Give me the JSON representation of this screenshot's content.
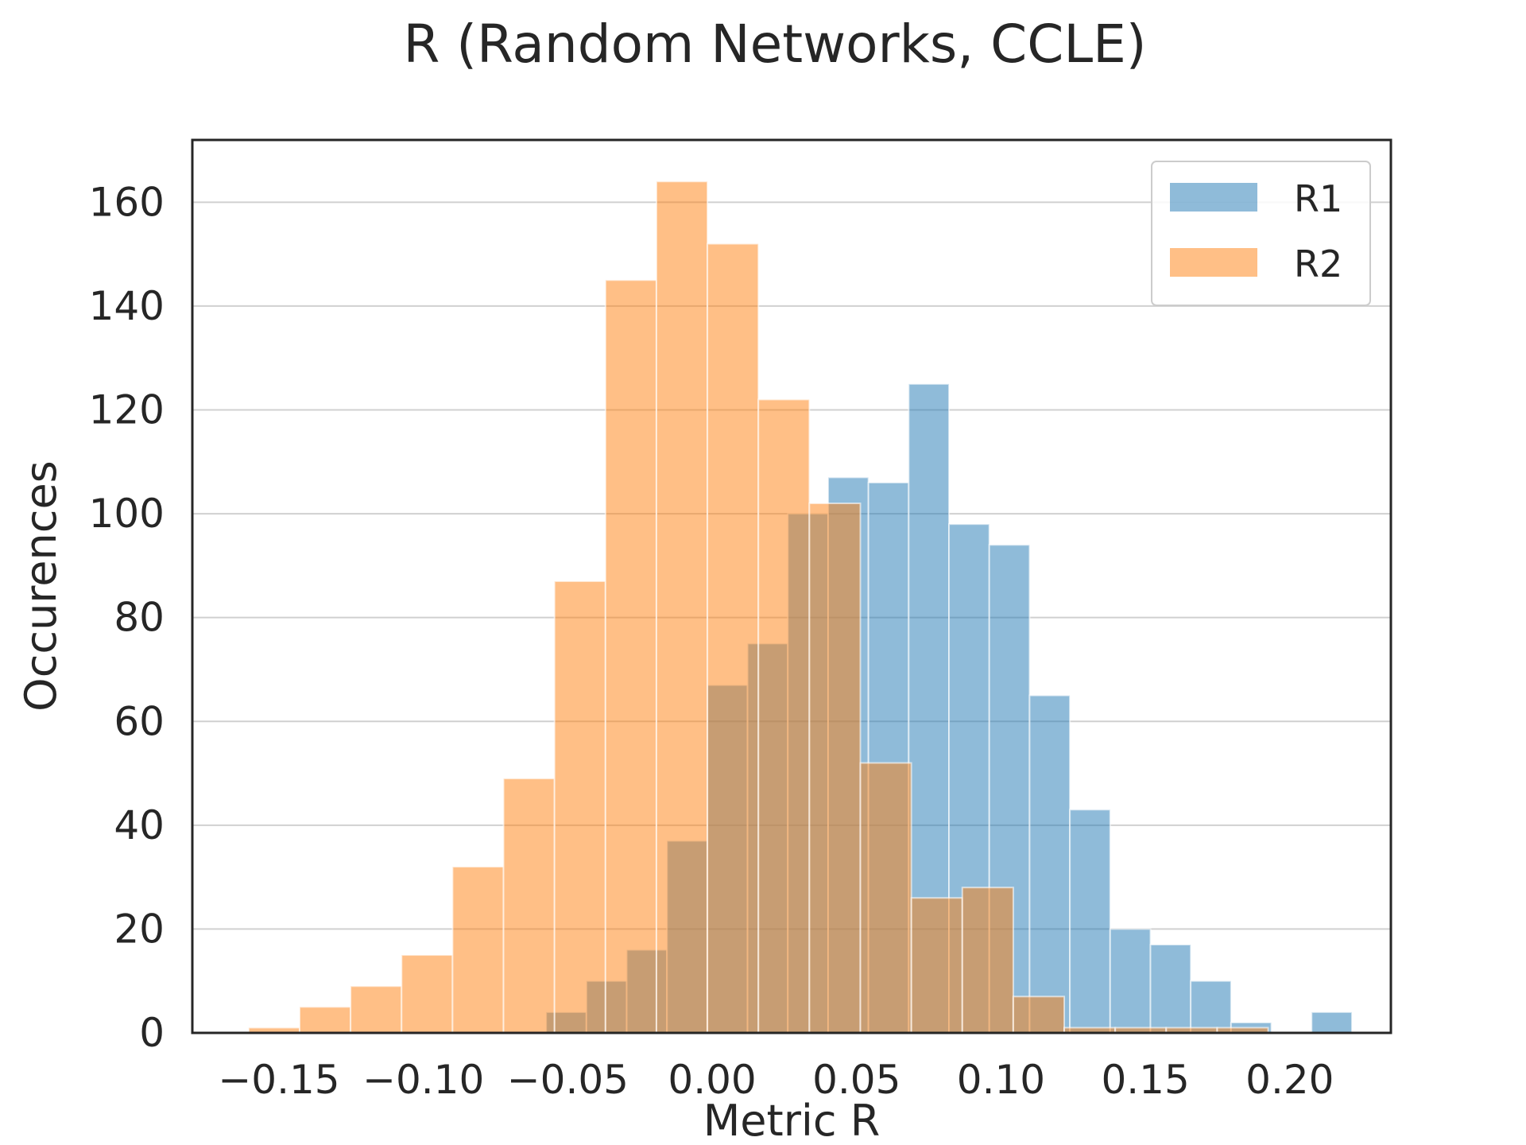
{
  "chart_data": {
    "type": "bar",
    "title": "R (Random Networks, CCLE)",
    "xlabel": "Metric R",
    "ylabel": "Occurences",
    "xlim": [
      -0.18,
      0.235
    ],
    "ylim": [
      0,
      172
    ],
    "xticks": [
      -0.15,
      -0.1,
      -0.05,
      0.0,
      0.05,
      0.1,
      0.15,
      0.2
    ],
    "xtick_labels": [
      "−0.15",
      "−0.10",
      "−0.05",
      "0.00",
      "0.05",
      "0.10",
      "0.15",
      "0.20"
    ],
    "yticks": [
      0,
      20,
      40,
      60,
      80,
      100,
      120,
      140,
      160
    ],
    "ytick_labels": [
      "0",
      "20",
      "40",
      "60",
      "80",
      "100",
      "120",
      "140",
      "160"
    ],
    "grid": "horizontal",
    "legend_position": "top-right",
    "series": [
      {
        "name": "R1",
        "color": "#1f77b4",
        "opacity": 0.5,
        "bin_start": -0.0575,
        "bin_width": 0.01395,
        "values": [
          4,
          10,
          16,
          37,
          67,
          75,
          100,
          107,
          106,
          125,
          98,
          94,
          65,
          43,
          20,
          17,
          10,
          2,
          0,
          4
        ]
      },
      {
        "name": "R2",
        "color": "#ff7f0e",
        "opacity": 0.5,
        "bin_start": -0.1605,
        "bin_width": 0.01765,
        "values": [
          1,
          5,
          9,
          15,
          32,
          49,
          87,
          145,
          164,
          152,
          122,
          102,
          52,
          26,
          28,
          7,
          1,
          1,
          1,
          1
        ]
      }
    ]
  }
}
